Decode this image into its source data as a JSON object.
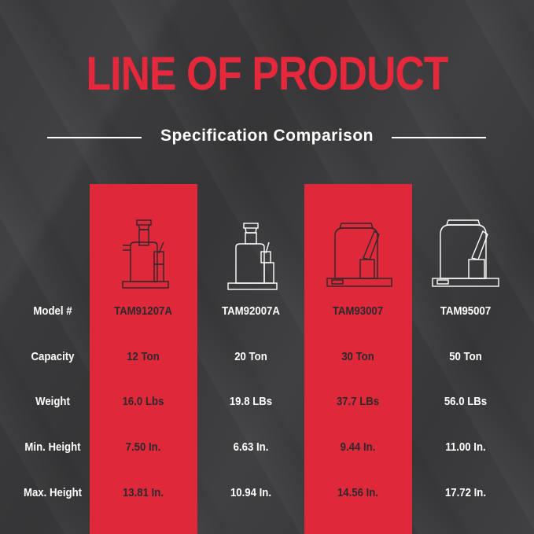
{
  "title": "LINE OF PRODUCT",
  "subtitle": "Specification Comparison",
  "colors": {
    "accent": "#e0283b",
    "background": "#3a3a3c",
    "text_light": "#ffffff",
    "text_dark": "#2a2a2c"
  },
  "row_labels": [
    "Model #",
    "Capacity",
    "Weight",
    "Min. Height",
    "Max. Height"
  ],
  "products": [
    {
      "model": "TAM91207A",
      "capacity": "12 Ton",
      "weight": "16.0 Lbs",
      "min_height": "7.50 In.",
      "max_height": "13.81 In."
    },
    {
      "model": "TAM92007A",
      "capacity": "20 Ton",
      "weight": "19.8 LBs",
      "min_height": "6.63 In.",
      "max_height": "10.94 In."
    },
    {
      "model": "TAM93007",
      "capacity": "30 Ton",
      "weight": "37.7 LBs",
      "min_height": "9.44 In.",
      "max_height": "14.56 In."
    },
    {
      "model": "TAM95007",
      "capacity": "50 Ton",
      "weight": "56.0 LBs",
      "min_height": "11.00 In.",
      "max_height": "17.72 In."
    }
  ]
}
